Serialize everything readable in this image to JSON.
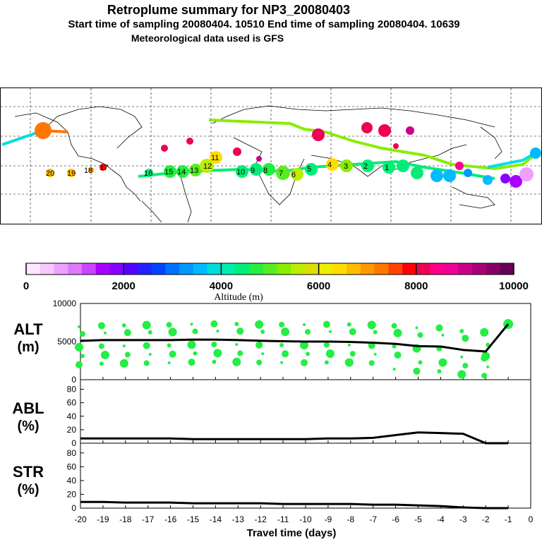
{
  "header": {
    "title": "Retroplume summary for NP3_20080403",
    "subtitle": "Start time of sampling 20080404. 10510     End time of sampling 20080404. 10639",
    "met": "Meteorological data used is GFS"
  },
  "colorbar": {
    "label": "Altitude (m)",
    "ticks": [
      "0",
      "2000",
      "4000",
      "6000",
      "8000",
      "10000"
    ],
    "colors": [
      "#ffe6ff",
      "#f7c8ff",
      "#eea0ff",
      "#e077ff",
      "#cc44ff",
      "#aa00ff",
      "#8800ff",
      "#5500ff",
      "#2222ff",
      "#0044ff",
      "#0070ff",
      "#0099ff",
      "#00bbff",
      "#00dddd",
      "#00eeaa",
      "#00ee77",
      "#22ee44",
      "#55ee22",
      "#88ee00",
      "#bbee00",
      "#dddd00",
      "#eeee00",
      "#ffdd00",
      "#ffbb00",
      "#ff9900",
      "#ff7700",
      "#ff4400",
      "#ff0000",
      "#ee0055",
      "#ff0088",
      "#ee0099",
      "#cc0088",
      "#aa0077",
      "#880066",
      "#660055"
    ]
  },
  "map_labels": [
    "20",
    "19",
    "18",
    "17",
    "16",
    "15",
    "14",
    "13",
    "12",
    "11",
    "10",
    "9",
    "8",
    "7",
    "6",
    "5",
    "4",
    "3",
    "2",
    "1"
  ],
  "chart_data": [
    {
      "type": "line",
      "panel": "ALT",
      "ylabel": "ALT\n(m)",
      "ylabel_line1": "ALT",
      "ylabel_line2": "(m)",
      "ylim": [
        0,
        10000
      ],
      "yticks": [
        "0",
        "5000",
        "10000"
      ],
      "x": [
        -20,
        -19,
        -18,
        -17,
        -16,
        -15,
        -14,
        -13,
        -12,
        -11,
        -10,
        -9,
        -8,
        -7,
        -6,
        -5,
        -4,
        -3,
        -2,
        -1
      ],
      "values": [
        5100,
        5200,
        5200,
        5200,
        5200,
        5250,
        5250,
        5200,
        5100,
        5050,
        5000,
        5000,
        4950,
        4850,
        4700,
        4400,
        4350,
        3900,
        3700,
        7300
      ],
      "scatter_color": "#22ee44"
    },
    {
      "type": "line",
      "panel": "ABL",
      "ylabel_line1": "ABL",
      "ylabel_line2": "(%)",
      "ylim": [
        0,
        90
      ],
      "yticks": [
        "0",
        "20",
        "40",
        "60",
        "80"
      ],
      "x": [
        -20,
        -19,
        -18,
        -17,
        -16,
        -15,
        -14,
        -13,
        -12,
        -11,
        -10,
        -9,
        -8,
        -7,
        -6,
        -5,
        -4,
        -3,
        -2,
        -1
      ],
      "values": [
        7,
        7,
        7,
        7,
        7,
        6,
        6,
        6,
        6,
        6,
        6,
        7,
        7,
        8,
        12,
        16,
        15,
        14,
        0,
        0
      ]
    },
    {
      "type": "line",
      "panel": "STR",
      "ylabel_line1": "STR",
      "ylabel_line2": "(%)",
      "ylim": [
        0,
        90
      ],
      "yticks": [
        "0",
        "20",
        "40",
        "60",
        "80"
      ],
      "x": [
        -20,
        -19,
        -18,
        -17,
        -16,
        -15,
        -14,
        -13,
        -12,
        -11,
        -10,
        -9,
        -8,
        -7,
        -6,
        -5,
        -4,
        -3,
        -2,
        -1
      ],
      "values": [
        9,
        9,
        8,
        8,
        8,
        7,
        7,
        7,
        7,
        6,
        6,
        6,
        6,
        5,
        5,
        4,
        3,
        1,
        0,
        0
      ],
      "xlabel": "Travel time (days)",
      "xticks": [
        "-20",
        "-19",
        "-18",
        "-17",
        "-16",
        "-15",
        "-14",
        "-13",
        "-12",
        "-11",
        "-10",
        "-9",
        "-8",
        "-7",
        "-6",
        "-5",
        "-4",
        "-3",
        "-2",
        "-1",
        "0"
      ]
    }
  ]
}
